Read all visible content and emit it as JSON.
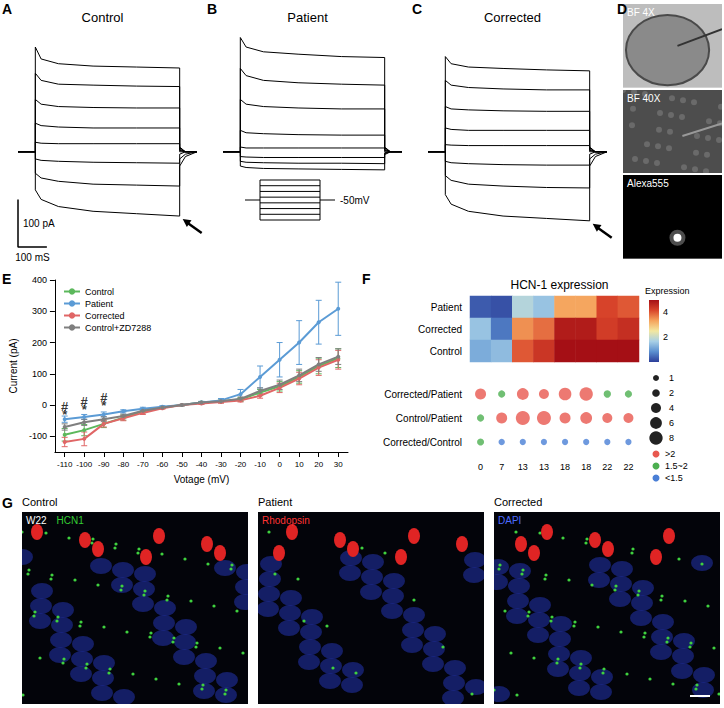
{
  "chart_data": [
    {
      "panel": "A",
      "type": "line",
      "title": "Control",
      "tick_labels": false,
      "color": "#000000",
      "xlim": [
        -60,
        560
      ],
      "ylim": [
        -200,
        260
      ],
      "x": [
        -60,
        0,
        0,
        20,
        80,
        200,
        350,
        500,
        500,
        520,
        560
      ],
      "series": [
        {
          "values": [
            0,
            0,
            220,
            195,
            185,
            180,
            178,
            176,
            10,
            0,
            0
          ]
        },
        {
          "values": [
            0,
            0,
            165,
            150,
            142,
            140,
            138,
            137,
            8,
            0,
            0
          ]
        },
        {
          "values": [
            0,
            0,
            110,
            100,
            95,
            93,
            92,
            92,
            5,
            0,
            0
          ]
        },
        {
          "values": [
            0,
            0,
            60,
            55,
            52,
            50,
            50,
            50,
            3,
            0,
            0
          ]
        },
        {
          "values": [
            0,
            0,
            20,
            18,
            17,
            17,
            17,
            17,
            0,
            0,
            0
          ]
        },
        {
          "values": [
            0,
            0,
            -15,
            -18,
            -20,
            -22,
            -23,
            -24,
            -5,
            0,
            0
          ]
        },
        {
          "values": [
            0,
            0,
            -45,
            -55,
            -62,
            -68,
            -70,
            -72,
            -15,
            -5,
            0
          ]
        },
        {
          "values": [
            0,
            0,
            -80,
            -100,
            -115,
            -125,
            -130,
            -135,
            -30,
            -10,
            0
          ]
        }
      ],
      "scale_bar": {
        "x": 100,
        "y": 100,
        "x_label": "100 mS",
        "y_label": "100 pA"
      }
    },
    {
      "panel": "B",
      "type": "line",
      "title": "Patient",
      "tick_labels": false,
      "color": "#000000",
      "xlim": [
        -60,
        560
      ],
      "ylim": [
        -200,
        260
      ],
      "x": [
        -60,
        0,
        0,
        20,
        80,
        200,
        350,
        500,
        500,
        520,
        560
      ],
      "series": [
        {
          "values": [
            0,
            0,
            240,
            220,
            210,
            205,
            200,
            198,
            10,
            0,
            0
          ]
        },
        {
          "values": [
            0,
            0,
            175,
            160,
            150,
            145,
            142,
            140,
            8,
            0,
            0
          ]
        },
        {
          "values": [
            0,
            0,
            110,
            100,
            95,
            92,
            90,
            90,
            5,
            0,
            0
          ]
        },
        {
          "values": [
            0,
            0,
            45,
            40,
            38,
            36,
            35,
            35,
            3,
            0,
            0
          ]
        },
        {
          "values": [
            0,
            0,
            10,
            8,
            8,
            8,
            8,
            8,
            0,
            0,
            0
          ]
        },
        {
          "values": [
            0,
            0,
            -10,
            -11,
            -12,
            -12,
            -12,
            -12,
            -2,
            0,
            0
          ]
        },
        {
          "values": [
            0,
            0,
            -20,
            -22,
            -23,
            -24,
            -24,
            -25,
            -4,
            0,
            0
          ]
        },
        {
          "values": [
            0,
            0,
            -30,
            -33,
            -35,
            -36,
            -37,
            -38,
            -6,
            0,
            0
          ]
        }
      ],
      "annotations": [
        "-50mV"
      ]
    },
    {
      "panel": "C",
      "type": "line",
      "title": "Corrected",
      "tick_labels": false,
      "color": "#000000",
      "xlim": [
        -60,
        560
      ],
      "ylim": [
        -200,
        260
      ],
      "x": [
        -60,
        0,
        0,
        20,
        80,
        200,
        350,
        500,
        500,
        520,
        560
      ],
      "series": [
        {
          "values": [
            0,
            0,
            200,
            185,
            178,
            175,
            172,
            170,
            10,
            0,
            0
          ]
        },
        {
          "values": [
            0,
            0,
            150,
            140,
            135,
            132,
            130,
            130,
            8,
            0,
            0
          ]
        },
        {
          "values": [
            0,
            0,
            95,
            90,
            88,
            86,
            85,
            85,
            5,
            0,
            0
          ]
        },
        {
          "values": [
            0,
            0,
            50,
            47,
            45,
            45,
            45,
            45,
            3,
            0,
            0
          ]
        },
        {
          "values": [
            0,
            0,
            15,
            14,
            13,
            13,
            13,
            13,
            0,
            0,
            0
          ]
        },
        {
          "values": [
            0,
            0,
            -20,
            -23,
            -25,
            -27,
            -28,
            -28,
            -5,
            0,
            0
          ]
        },
        {
          "values": [
            0,
            0,
            -50,
            -60,
            -68,
            -72,
            -75,
            -76,
            -15,
            -5,
            0
          ]
        },
        {
          "values": [
            0,
            0,
            -90,
            -110,
            -125,
            -135,
            -140,
            -145,
            -30,
            -10,
            0
          ]
        }
      ]
    },
    {
      "panel": "D",
      "type": "image",
      "panels": [
        {
          "labels": [
            {
              "text": "BF 4X",
              "color": "#ffffff"
            }
          ]
        },
        {
          "labels": [
            {
              "text": "BF 40X",
              "color": "#ffffff"
            }
          ]
        },
        {
          "labels": [
            {
              "text": "Alexa555",
              "color": "#ffffff"
            }
          ]
        }
      ]
    },
    {
      "panel": "E",
      "type": "line",
      "x_label": "Votage (mV)",
      "y_label": "Current (pA)",
      "xlim": [
        -115,
        35
      ],
      "xticks": [
        -110,
        -100,
        -90,
        -80,
        -70,
        -60,
        -50,
        -40,
        -30,
        -20,
        -10,
        0,
        10,
        20,
        30
      ],
      "ylim": [
        -150,
        400
      ],
      "yticks": [
        -100,
        0,
        100,
        200,
        300,
        400
      ],
      "grid": false,
      "legend": "top-left",
      "marker": "circle",
      "x": [
        -110,
        -100,
        -90,
        -80,
        -70,
        -60,
        -50,
        -40,
        -30,
        -20,
        -10,
        0,
        10,
        20,
        30
      ],
      "series": [
        {
          "name": "Control",
          "color": "#5cb85c",
          "values": [
            -95,
            -80,
            -60,
            -40,
            -20,
            -8,
            0,
            8,
            12,
            18,
            40,
            60,
            90,
            125,
            150
          ],
          "errors": [
            20,
            18,
            12,
            8,
            5,
            3,
            2,
            3,
            4,
            6,
            10,
            15,
            20,
            25,
            30
          ]
        },
        {
          "name": "Patient",
          "color": "#5b9bd5",
          "values": [
            -45,
            -38,
            -30,
            -20,
            -12,
            -5,
            0,
            8,
            15,
            35,
            90,
            145,
            200,
            265,
            308
          ],
          "errors": [
            10,
            8,
            8,
            5,
            5,
            3,
            2,
            4,
            6,
            15,
            35,
            55,
            70,
            70,
            85
          ]
        },
        {
          "name": "Corrected",
          "color": "#e06666",
          "values": [
            -118,
            -108,
            -60,
            -42,
            -25,
            -10,
            0,
            5,
            10,
            15,
            30,
            55,
            85,
            120,
            145
          ],
          "errors": [
            15,
            22,
            10,
            8,
            5,
            3,
            2,
            3,
            4,
            5,
            8,
            15,
            20,
            25,
            30
          ]
        },
        {
          "name": "Control+ZD7288",
          "color": "#7f7f7f",
          "values": [
            -70,
            -55,
            -45,
            -35,
            -18,
            -8,
            0,
            8,
            12,
            20,
            45,
            65,
            95,
            130,
            155
          ],
          "errors": [
            10,
            10,
            8,
            6,
            4,
            3,
            2,
            3,
            4,
            6,
            10,
            15,
            20,
            22,
            25
          ]
        }
      ],
      "annotations": [
        {
          "text": "#",
          "x": -110,
          "y": -5
        },
        {
          "text": "#",
          "x": -100,
          "y": 10
        },
        {
          "text": "#",
          "x": -90,
          "y": 25
        },
        {
          "text": "*",
          "x": -110,
          "y": -30
        },
        {
          "text": "*",
          "x": -100,
          "y": -15
        },
        {
          "text": "*",
          "x": -90,
          "y": 0
        }
      ]
    },
    {
      "panel": "F",
      "type": "heatmap",
      "title": "HCN-1 expression",
      "categories": [
        null,
        null,
        null,
        null,
        null,
        null,
        null,
        null
      ],
      "rows": [
        "Patient",
        "Corrected",
        "Control"
      ],
      "cells": [
        [
          0.3,
          0.2,
          1.8,
          1.5,
          3.3,
          3.3,
          4.2,
          4.0
        ],
        [
          1.5,
          0.6,
          3.5,
          3.8,
          4.8,
          4.8,
          4.3,
          4.5
        ],
        [
          1.2,
          1.4,
          4.0,
          4.4,
          5.0,
          5.0,
          5.0,
          5.0
        ]
      ],
      "color_range": [
        0,
        5
      ],
      "color_ticks": [
        2,
        4
      ],
      "color_label": "Expression"
    },
    {
      "type": "scatter",
      "categories": [
        "0",
        "7",
        "13",
        "13",
        "18",
        "18",
        "22",
        "22"
      ],
      "rows": [
        "Corrected/Patient",
        "Control/Patient",
        "Corrected/Control"
      ],
      "sizes": [
        [
          5,
          1.7,
          6,
          4,
          7,
          8,
          1.8,
          1.7
        ],
        [
          1.7,
          5,
          9,
          9,
          5,
          6,
          4,
          4
        ],
        [
          1.6,
          1.2,
          1.1,
          1.1,
          1.1,
          1.1,
          1.1,
          1.1
        ]
      ],
      "colors": [
        [
          "#e8584f",
          "#4caf50",
          "#e8584f",
          "#e8584f",
          "#e8584f",
          "#e8584f",
          "#4caf50",
          "#4caf50"
        ],
        [
          "#4caf50",
          "#e8584f",
          "#e8584f",
          "#e8584f",
          "#e8584f",
          "#e8584f",
          "#e8584f",
          "#e8584f"
        ],
        [
          "#4caf50",
          "#4a7fd6",
          "#4a7fd6",
          "#4a7fd6",
          "#4a7fd6",
          "#4a7fd6",
          "#4a7fd6",
          "#4a7fd6"
        ]
      ],
      "size_legend": [
        1,
        2,
        4,
        6,
        8
      ],
      "color_legend": [
        {
          "label": ">2",
          "color": "#e8584f"
        },
        {
          "label": "1.5~2",
          "color": "#4caf50"
        },
        {
          "label": "<1.5",
          "color": "#4a7fd6"
        }
      ]
    },
    {
      "panel": "G",
      "type": "image",
      "panels": [
        {
          "title": "Control",
          "labels": [
            {
              "text": "W22",
              "color": "#ffffff"
            },
            {
              "text": "HCN1",
              "color": "#33cc33"
            }
          ]
        },
        {
          "title": "Patient",
          "labels": [
            {
              "text": "Rhodopsin",
              "color": "#ff3333"
            }
          ]
        },
        {
          "title": "Corrected",
          "labels": [
            {
              "text": "DAPI",
              "color": "#4d6bff"
            }
          ]
        }
      ]
    }
  ]
}
